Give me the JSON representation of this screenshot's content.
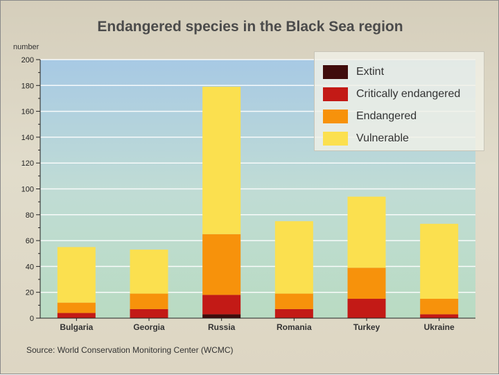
{
  "chart_data": {
    "type": "bar",
    "stacked": true,
    "title": "Endangered species in the Black Sea region",
    "ylabel": "number",
    "xlabel": "",
    "ylim": [
      0,
      200
    ],
    "yticks": [
      0,
      20,
      40,
      60,
      80,
      100,
      120,
      140,
      160,
      180,
      200
    ],
    "categories": [
      "Bulgaria",
      "Georgia",
      "Russia",
      "Romania",
      "Turkey",
      "Ukraine"
    ],
    "series": [
      {
        "name": "Extint",
        "color": "#3f0c0c",
        "values": [
          0,
          0,
          3,
          0,
          0,
          0
        ]
      },
      {
        "name": "Critically endangered",
        "color": "#c31a16",
        "values": [
          4,
          7,
          15,
          7,
          15,
          3
        ]
      },
      {
        "name": "Endangered",
        "color": "#f7920b",
        "values": [
          8,
          12,
          47,
          12,
          24,
          12
        ]
      },
      {
        "name": "Vulnerable",
        "color": "#fbe04f",
        "values": [
          43,
          34,
          114,
          56,
          55,
          58
        ]
      }
    ],
    "legend_position": "top-right",
    "source": "Source: World Conservation Monitoring Center (WCMC)"
  }
}
